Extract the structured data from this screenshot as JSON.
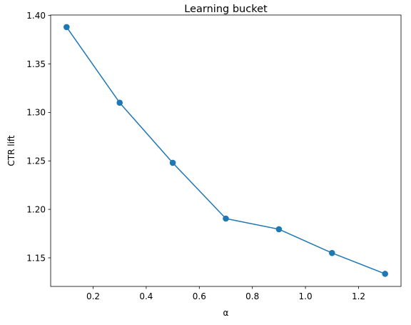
{
  "chart_data": {
    "type": "line",
    "title": "Learning bucket",
    "xlabel": "α",
    "ylabel": "CTR lift",
    "xlim": [
      0.04,
      1.36
    ],
    "ylim": [
      1.1205,
      1.4005
    ],
    "x_ticks": [
      0.2,
      0.4,
      0.6,
      0.8,
      1.0,
      1.2
    ],
    "x_tick_labels": [
      "0.2",
      "0.4",
      "0.6",
      "0.8",
      "1.0",
      "1.2"
    ],
    "y_ticks": [
      1.15,
      1.2,
      1.25,
      1.3,
      1.35,
      1.4
    ],
    "y_tick_labels": [
      "1.15",
      "1.20",
      "1.25",
      "1.30",
      "1.35",
      "1.40"
    ],
    "grid": false,
    "legend": "none",
    "markers": "circle",
    "series": [
      {
        "color": "#1f77b4",
        "x": [
          0.1,
          0.3,
          0.5,
          0.7,
          0.9,
          1.1,
          1.3
        ],
        "y": [
          1.388,
          1.31,
          1.248,
          1.1905,
          1.1795,
          1.155,
          1.1335
        ]
      }
    ]
  }
}
